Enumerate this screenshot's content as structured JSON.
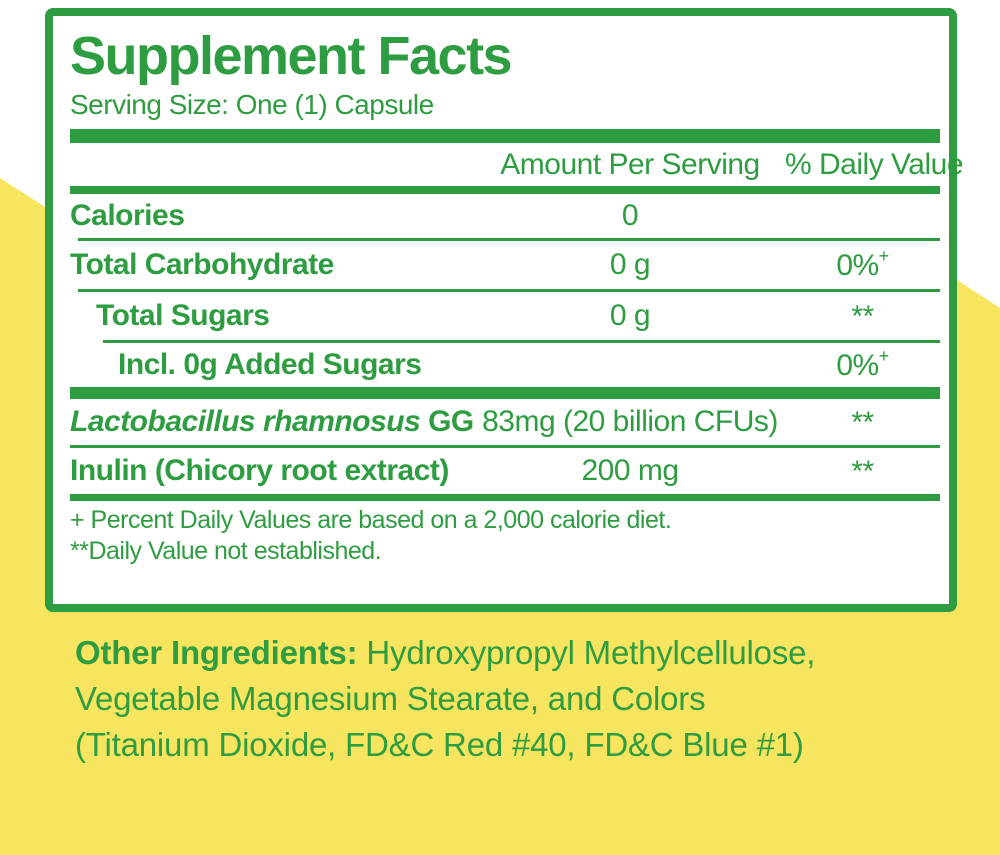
{
  "label": {
    "title": "Supplement Facts",
    "serving_size": "Serving Size: One (1) Capsule",
    "columns": {
      "amount": "Amount Per Serving",
      "daily_value": "% Daily Value"
    },
    "rows": [
      {
        "name": "Calories",
        "amount": "0",
        "dv": "",
        "dv_sup": ""
      },
      {
        "name": "Total Carbohydrate",
        "amount": "0 g",
        "dv": "0%",
        "dv_sup": "+"
      },
      {
        "name": "Total Sugars",
        "amount": "0 g",
        "dv": "**",
        "dv_sup": ""
      },
      {
        "name": "Incl. 0g Added Sugars",
        "amount": "",
        "dv": "0%",
        "dv_sup": "+"
      },
      {
        "name_italic": "Lactobacillus rhamnosus",
        "name_rest": " GG",
        "amount": "83mg (20 billion CFUs)",
        "dv": "**",
        "dv_sup": ""
      },
      {
        "name": "Inulin (Chicory root extract)",
        "amount": "200 mg",
        "dv": "**",
        "dv_sup": ""
      }
    ],
    "footnotes": [
      "+ Percent Daily Values are based on a 2,000 calorie diet.",
      "**Daily Value not established."
    ]
  },
  "other_ingredients": {
    "prefix": "Other Ingredients:",
    "line1_rest": " Hydroxypropyl Methylcellulose,",
    "line2": "Vegetable Magnesium Stearate, and Colors",
    "line3": "(Titanium Dioxide, FD&C Red #40, FD&C Blue #1)"
  },
  "colors": {
    "green": "#2E9C40",
    "yellow": "#F8E55F",
    "panel_background": "#FFFFFF"
  }
}
